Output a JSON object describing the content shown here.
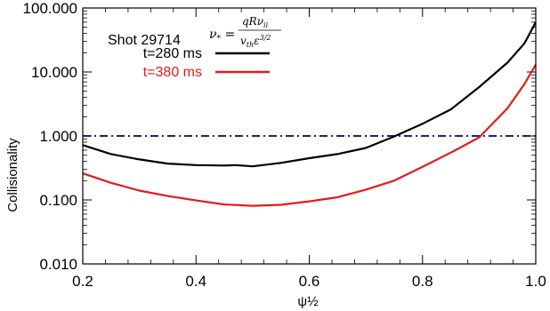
{
  "chart_data": {
    "type": "line",
    "title": "",
    "xlabel": "ψ½",
    "ylabel": "Collisionality",
    "xlim": [
      0.2,
      1.0
    ],
    "ylim": [
      0.01,
      100
    ],
    "yscale": "log",
    "x_ticks": [
      "0.2",
      "0.4",
      "0.6",
      "0.8",
      "1.0"
    ],
    "y_ticks": [
      "0.010",
      "0.100",
      "1.000",
      "10.000",
      "100.000"
    ],
    "grid": false,
    "shot_label": "Shot 29714",
    "formula": {
      "lhs": "ν",
      "lhs_sub": "*",
      "num": "qRν",
      "num_sub": "ii",
      "den": "v",
      "den_sub": "th",
      "den_eps": "ε",
      "den_sup": "3/2"
    },
    "reference_line": {
      "y": 1.0,
      "color": "#1a237e",
      "style": "dash-dot"
    },
    "series": [
      {
        "name": "t=280 ms",
        "color": "#000000",
        "x": [
          0.2,
          0.25,
          0.3,
          0.35,
          0.4,
          0.45,
          0.47,
          0.5,
          0.55,
          0.6,
          0.65,
          0.7,
          0.75,
          0.8,
          0.85,
          0.9,
          0.95,
          0.98,
          1.0
        ],
        "y": [
          0.72,
          0.52,
          0.43,
          0.37,
          0.35,
          0.345,
          0.35,
          0.335,
          0.38,
          0.45,
          0.52,
          0.65,
          0.98,
          1.55,
          2.6,
          5.8,
          14,
          28,
          60
        ]
      },
      {
        "name": "t=380 ms",
        "color": "#e41a1c",
        "x": [
          0.2,
          0.25,
          0.3,
          0.35,
          0.4,
          0.45,
          0.5,
          0.55,
          0.6,
          0.65,
          0.7,
          0.75,
          0.8,
          0.85,
          0.9,
          0.95,
          0.98,
          1.0
        ],
        "y": [
          0.26,
          0.185,
          0.14,
          0.115,
          0.098,
          0.085,
          0.081,
          0.084,
          0.095,
          0.11,
          0.145,
          0.2,
          0.33,
          0.55,
          0.95,
          2.7,
          6.5,
          13
        ]
      }
    ]
  }
}
